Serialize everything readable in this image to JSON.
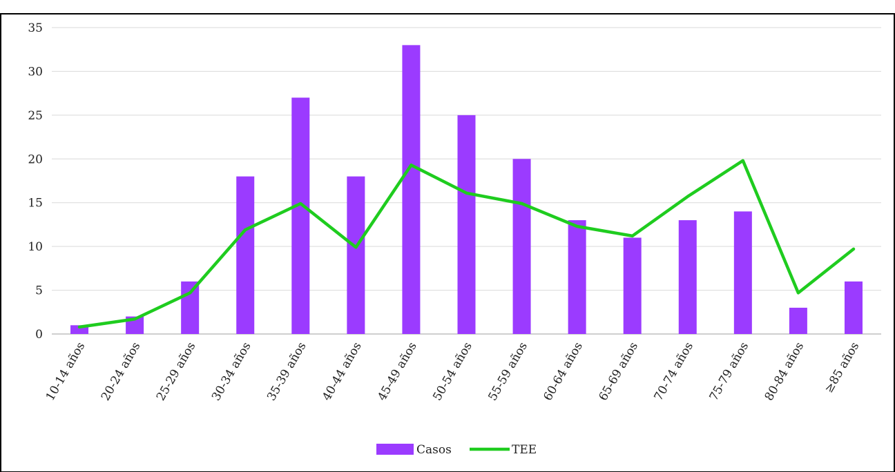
{
  "chart_data": {
    "type": "bar",
    "title": "",
    "xlabel": "",
    "ylabel": "",
    "categories": [
      "10-14 años",
      "20-24 años",
      "25-29 años",
      "30-34 años",
      "35-39 años",
      "40-44 años",
      "45-49 años",
      "50-54 años",
      "55-59 años",
      "60-64 años",
      "65-69 años",
      "70-74 años",
      "75-79 años",
      "80-84 años",
      "≥85 años"
    ],
    "ylim": [
      0,
      35
    ],
    "yticks": [
      "0",
      "5",
      "10",
      "15",
      "20",
      "25",
      "30",
      "35"
    ],
    "grid": true,
    "legend": "bottom",
    "series": [
      {
        "name": "Casos",
        "kind": "bar",
        "color": "#9B3BFF",
        "values": [
          1,
          2,
          6,
          18,
          27,
          18,
          33,
          25,
          20,
          13,
          11,
          13,
          14,
          3,
          6
        ]
      },
      {
        "name": "TEE",
        "kind": "line",
        "color": "#1FCC1F",
        "values": [
          0.8,
          1.7,
          4.7,
          11.9,
          14.9,
          9.9,
          19.3,
          16.1,
          14.9,
          12.3,
          11.2,
          15.7,
          19.8,
          4.7,
          9.7
        ]
      }
    ]
  }
}
